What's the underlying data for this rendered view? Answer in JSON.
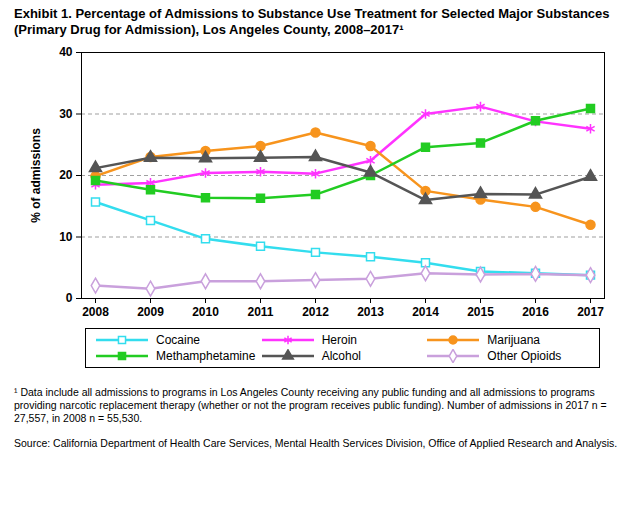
{
  "chart_data": {
    "type": "line",
    "title": "Exhibit 1. Percentage of Admissions to Substance Use Treatment for Selected Major Substances (Primary Drug for Admission), Los Angeles County, 2008–2017¹",
    "y_label": "% of admissions",
    "categories": [
      "2008",
      "2009",
      "2010",
      "2011",
      "2012",
      "2013",
      "2014",
      "2015",
      "2016",
      "2017"
    ],
    "ylim": [
      0,
      40
    ],
    "yticks": [
      0,
      10,
      20,
      30,
      40
    ],
    "grid": true,
    "legend": "bottom",
    "series": [
      {
        "name": "Cocaine",
        "color": "#33ddee",
        "marker": "square-open",
        "values": [
          15.7,
          12.7,
          9.7,
          8.5,
          7.5,
          6.8,
          5.8,
          4.4,
          4.1,
          3.8
        ]
      },
      {
        "name": "Heroin",
        "color": "#ff33ff",
        "marker": "asterisk",
        "values": [
          18.5,
          18.8,
          20.4,
          20.6,
          20.3,
          22.4,
          30.0,
          31.2,
          28.8,
          27.6
        ]
      },
      {
        "name": "Marijuana",
        "color": "#f7941d",
        "marker": "circle",
        "values": [
          19.9,
          23.0,
          24.0,
          24.8,
          27.0,
          24.8,
          17.5,
          16.1,
          14.9,
          12.0
        ]
      },
      {
        "name": "Methamphetamine",
        "color": "#22cc22",
        "marker": "square",
        "values": [
          19.2,
          17.7,
          16.4,
          16.3,
          16.9,
          20.0,
          24.6,
          25.3,
          28.9,
          30.9
        ]
      },
      {
        "name": "Alcohol",
        "color": "#555555",
        "marker": "triangle",
        "values": [
          21.2,
          22.9,
          22.8,
          22.9,
          23.0,
          20.5,
          16.0,
          17.0,
          16.9,
          19.8
        ]
      },
      {
        "name": "Other Opioids",
        "color": "#c9a0dc",
        "marker": "diamond-open",
        "values": [
          2.1,
          1.6,
          2.8,
          2.8,
          3.0,
          3.2,
          4.1,
          3.9,
          4.0,
          3.8
        ]
      }
    ],
    "footnote": "¹ Data include all admissions to programs in Los Angeles County receiving any public funding and all admissions to programs providing narcotic replacement therapy (whether or not the program receives public funding). Number of admissions in 2017 n = 27,557, in 2008 n = 55,530.",
    "source": "Source: California Department of Health Care Services, Mental Health Services Division, Office of Applied Research and Analysis."
  }
}
